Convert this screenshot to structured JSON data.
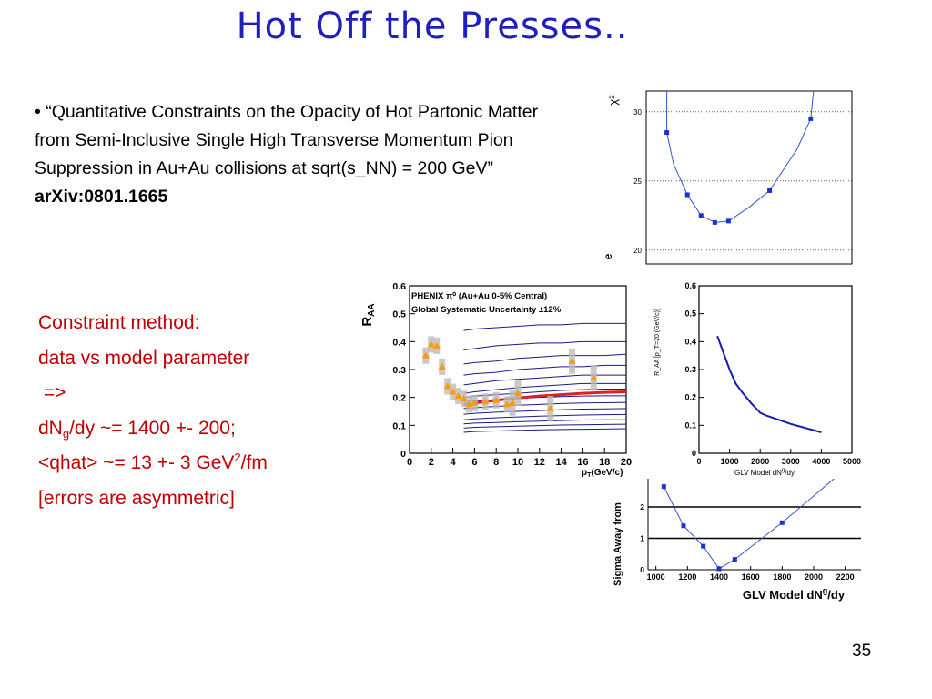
{
  "slide": {
    "title": "Hot Off the Presses..",
    "page_number": "35"
  },
  "citation": {
    "bullet": "•",
    "text": "“Quantitative Constraints on the Opacity of Hot Partonic Matter from Semi-Inclusive Single High Transverse Momentum Pion Suppression in Au+Au collisions at sqrt(s_NN) = 200 GeV”",
    "arxiv": "arXiv:0801.1665"
  },
  "method": {
    "line1": "Constraint method:",
    "line2": "data vs model parameter",
    "line3": " =>",
    "line4_a": "dN",
    "line4_sub": "g",
    "line4_b": "/dy ~= 1400 +- 200;",
    "line5_a": "<qhat> ~= 13 +- 3 GeV",
    "line5_sup": "2",
    "line5_b": "/fm",
    "line6": "[errors are asymmetric]"
  },
  "chart_data": [
    {
      "id": "chi2",
      "type": "scatter",
      "ylabel": "χ²",
      "ylabel_extra": "e",
      "yticks": [
        "20",
        "25",
        "30"
      ],
      "ylim": [
        19,
        31.5
      ],
      "xlim": [
        900,
        2400
      ],
      "grid": true,
      "x": [
        1050,
        1200,
        1300,
        1400,
        1500,
        1800,
        2100
      ],
      "values": [
        28.5,
        24.0,
        22.5,
        22.0,
        22.1,
        24.3,
        29.5
      ],
      "curve": [
        [
          1050,
          33.5
        ],
        [
          1050,
          28.5
        ],
        [
          1100,
          26.2
        ],
        [
          1200,
          24.0
        ],
        [
          1300,
          22.5
        ],
        [
          1400,
          22.0
        ],
        [
          1500,
          22.1
        ],
        [
          1650,
          23.1
        ],
        [
          1800,
          24.3
        ],
        [
          2000,
          27.3
        ],
        [
          2100,
          29.5
        ],
        [
          2140,
          33.5
        ]
      ]
    },
    {
      "id": "raa_vs_pt",
      "type": "scatter",
      "ylabel": "R",
      "ylabel_sub": "AA",
      "xlabel": "p",
      "xlabel_sub": "T",
      "xlabel_unit": "(GeV/c)",
      "legend_line1": "PHENIX π⁰ (Au+Au 0-5% Central)",
      "legend_line2": "Global Systematic Uncertainty ±12%",
      "xticks": [
        "0",
        "2",
        "4",
        "6",
        "8",
        "10",
        "12",
        "14",
        "16",
        "18",
        "20"
      ],
      "yticks": [
        "0",
        "0.1",
        "0.2",
        "0.3",
        "0.4",
        "0.5",
        "0.6"
      ],
      "xlim": [
        0,
        20
      ],
      "ylim": [
        0,
        0.6
      ],
      "points": {
        "x": [
          1.5,
          2.0,
          2.5,
          3.0,
          3.5,
          4.0,
          4.5,
          5.0,
          5.5,
          6.0,
          7.0,
          8.0,
          9.0,
          9.5,
          10.0,
          13.0,
          15.0,
          17.0
        ],
        "y": [
          0.35,
          0.39,
          0.385,
          0.31,
          0.24,
          0.22,
          0.205,
          0.195,
          0.175,
          0.18,
          0.185,
          0.19,
          0.175,
          0.18,
          0.215,
          0.16,
          0.33,
          0.27
        ]
      },
      "model_x": [
        5,
        6,
        8,
        10,
        12,
        14,
        16,
        18,
        20
      ],
      "model_curves": [
        [
          0.44,
          0.445,
          0.45,
          0.455,
          0.46,
          0.46,
          0.465,
          0.465,
          0.465
        ],
        [
          0.37,
          0.375,
          0.385,
          0.39,
          0.395,
          0.395,
          0.4,
          0.4,
          0.4
        ],
        [
          0.32,
          0.325,
          0.33,
          0.34,
          0.345,
          0.35,
          0.35,
          0.35,
          0.355
        ],
        [
          0.28,
          0.285,
          0.29,
          0.3,
          0.305,
          0.31,
          0.31,
          0.315,
          0.315
        ],
        [
          0.245,
          0.25,
          0.26,
          0.265,
          0.27,
          0.275,
          0.28,
          0.28,
          0.28
        ],
        [
          0.215,
          0.22,
          0.228,
          0.235,
          0.24,
          0.245,
          0.25,
          0.25,
          0.25
        ],
        [
          0.2,
          0.205,
          0.21,
          0.215,
          0.22,
          0.225,
          0.228,
          0.23,
          0.23
        ],
        [
          0.185,
          0.188,
          0.192,
          0.197,
          0.2,
          0.203,
          0.205,
          0.206,
          0.206
        ],
        [
          0.16,
          0.163,
          0.168,
          0.172,
          0.175,
          0.178,
          0.18,
          0.181,
          0.182
        ],
        [
          0.14,
          0.143,
          0.147,
          0.15,
          0.153,
          0.156,
          0.158,
          0.159,
          0.16
        ],
        [
          0.12,
          0.123,
          0.127,
          0.13,
          0.133,
          0.135,
          0.137,
          0.138,
          0.139
        ],
        [
          0.105,
          0.108,
          0.11,
          0.113,
          0.115,
          0.117,
          0.119,
          0.12,
          0.12
        ],
        [
          0.09,
          0.093,
          0.095,
          0.097,
          0.099,
          0.101,
          0.102,
          0.103,
          0.104
        ],
        [
          0.075,
          0.078,
          0.08,
          0.082,
          0.084,
          0.085,
          0.086,
          0.087,
          0.088
        ]
      ],
      "best_fit": [
        0.175,
        0.18,
        0.19,
        0.198,
        0.205,
        0.21,
        0.215,
        0.218,
        0.22
      ]
    },
    {
      "id": "raa_at_20",
      "type": "line",
      "ylabel": "R_AA [p_T=20 (GeV/c)]",
      "xlabel": "GLV Model dN",
      "xlabel_sup": "g",
      "xlabel_b": "/dy",
      "xticks": [
        "0",
        "1000",
        "2000",
        "3000",
        "4000",
        "5000"
      ],
      "yticks": [
        "0",
        "0.1",
        "0.2",
        "0.3",
        "0.4",
        "0.5",
        "0.6"
      ],
      "xlim": [
        0,
        5000
      ],
      "ylim": [
        0,
        0.6
      ],
      "x": [
        600,
        800,
        1000,
        1200,
        1400,
        1700,
        2000,
        2200,
        2600,
        3000,
        3500,
        4000
      ],
      "values": [
        0.42,
        0.36,
        0.3,
        0.25,
        0.22,
        0.18,
        0.145,
        0.135,
        0.12,
        0.105,
        0.09,
        0.075
      ]
    },
    {
      "id": "sigma_away",
      "type": "scatter",
      "ylabel": "Sigma Away from",
      "xlabel": "GLV Model dN",
      "xlabel_sup": "g",
      "xlabel_b": "/dy",
      "xticks": [
        "1000",
        "1200",
        "1400",
        "1600",
        "1800",
        "2000",
        "2200"
      ],
      "yticks": [
        "0",
        "1",
        "2"
      ],
      "xlim": [
        950,
        2300
      ],
      "ylim": [
        0,
        2.9
      ],
      "hlines": [
        1,
        2
      ],
      "x": [
        1050,
        1175,
        1300,
        1400,
        1500,
        1800
      ],
      "values": [
        2.65,
        1.4,
        0.75,
        0.03,
        0.33,
        1.5
      ],
      "curve": [
        [
          1050,
          2.65
        ],
        [
          1175,
          1.4
        ],
        [
          1300,
          0.75
        ],
        [
          1400,
          0.03
        ],
        [
          1500,
          0.33
        ],
        [
          1800,
          1.5
        ],
        [
          2140,
          2.95
        ]
      ]
    }
  ]
}
